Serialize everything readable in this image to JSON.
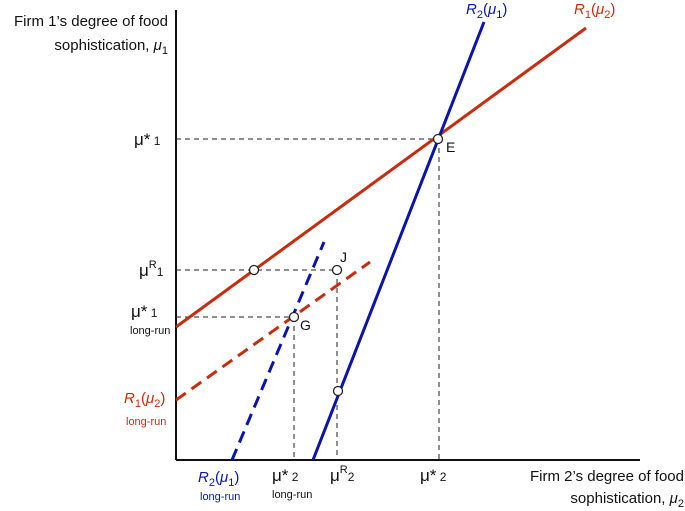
{
  "y_axis_label": {
    "line1": "Firm 1’s degree of food",
    "line2": "sophistication,",
    "symbol": "μ",
    "sub": "1"
  },
  "x_axis_label": {
    "line1": "Firm 2’s degree of food",
    "line2": "sophistication,",
    "symbol": "μ",
    "sub": "2"
  },
  "curves": {
    "r2_top": {
      "main": "R",
      "sub": "2",
      "arg": "μ",
      "arg_sub": "1"
    },
    "r1_top": {
      "main": "R",
      "sub": "1",
      "arg": "μ",
      "arg_sub": "2"
    },
    "r1_bottom": {
      "main": "R",
      "sub": "1",
      "arg": "μ",
      "arg_sub": "2",
      "note": "long-run"
    },
    "r2_bottom": {
      "main": "R",
      "sub": "2",
      "arg": "μ",
      "arg_sub": "1",
      "note": "long-run"
    }
  },
  "y_ticks": {
    "mu_star_1": {
      "base": "μ*",
      "sub": "1"
    },
    "mu_r_1": {
      "base": "μ",
      "sup": "R",
      "sub": "1"
    },
    "mu_star_1_lr": {
      "base": "μ*",
      "sub": "1",
      "note": "long-run"
    }
  },
  "x_ticks": {
    "mu_star_2_lr": {
      "base": "μ*",
      "sub": "2",
      "note": "long-run"
    },
    "mu_r_2": {
      "base": "μ",
      "sup": "R",
      "sub": "2"
    },
    "mu_star_2": {
      "base": "μ*",
      "sub": "2"
    }
  },
  "points": {
    "E": "E",
    "J": "J",
    "G": "G"
  },
  "colors": {
    "red": "#c62d0d",
    "blue": "#0a14a8",
    "axis": "#111111"
  }
}
